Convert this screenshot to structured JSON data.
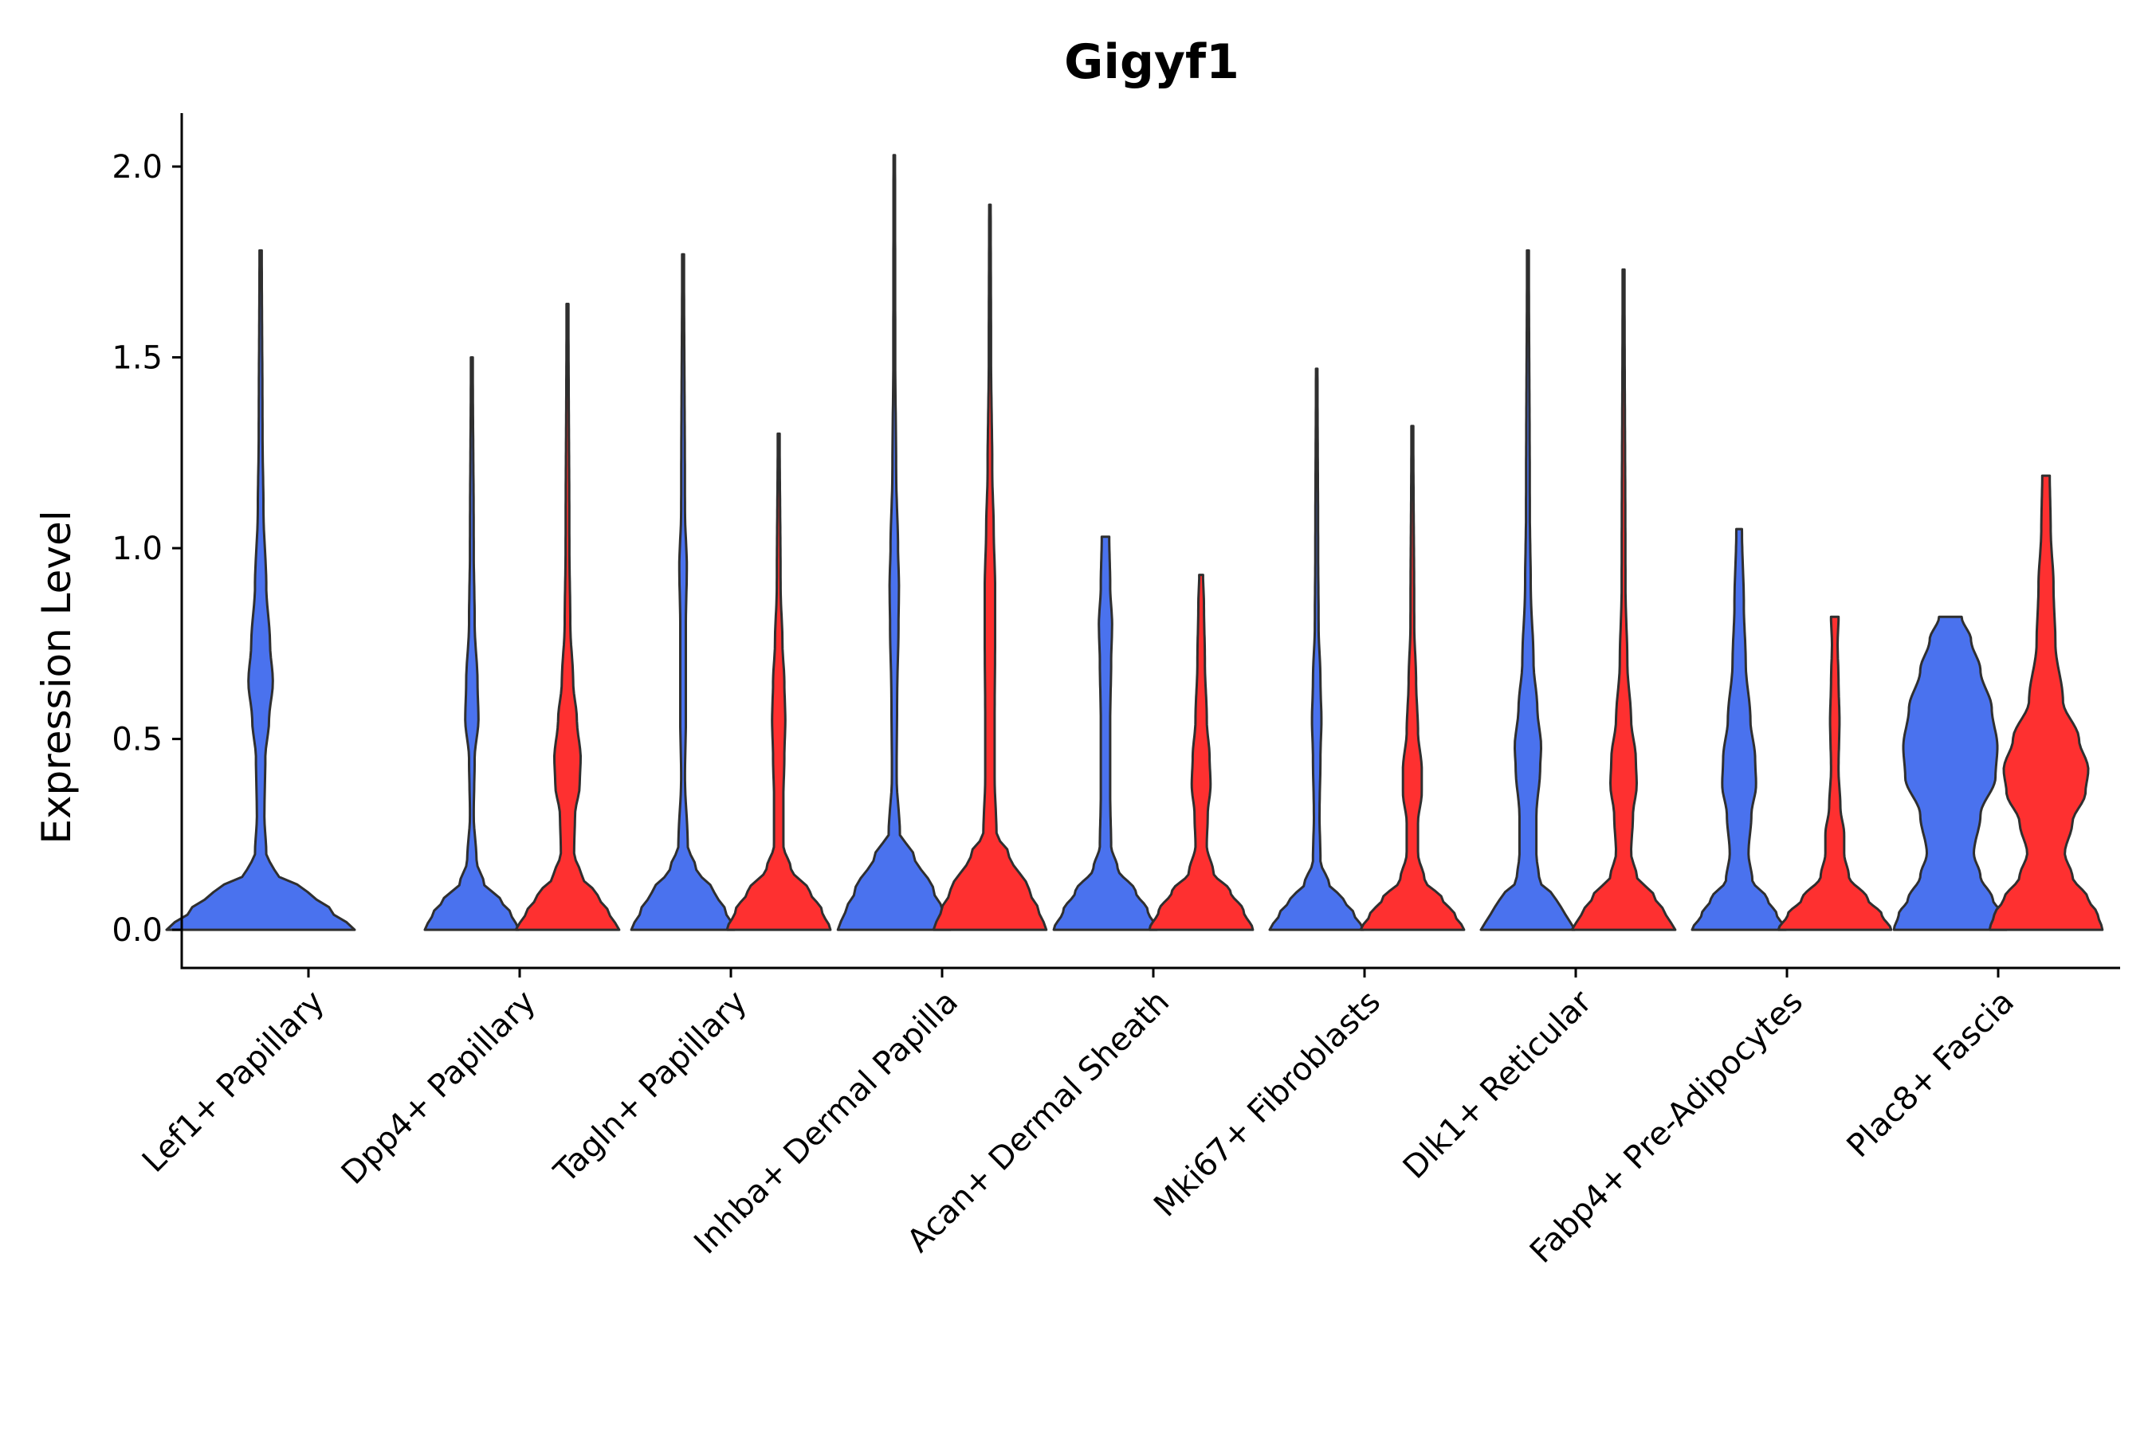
{
  "chart_data": {
    "type": "violin",
    "title": "Gigyf1",
    "xlabel": "",
    "ylabel": "Expression Level",
    "ylim": [
      -0.1,
      2.14
    ],
    "yticks": [
      "0.0",
      "0.5",
      "1.0",
      "1.5",
      "2.0"
    ],
    "ytick_values": [
      0,
      0.5,
      1.0,
      1.5,
      2.0
    ],
    "grid": false,
    "legend": "none",
    "colors": {
      "group1": "#4A72EE",
      "group2": "#FE3030",
      "outline": "#2f2f2f",
      "axis": "#000000"
    },
    "categories": [
      "Lef1+ Papillary",
      "Dpp4+ Papillary",
      "Tagln+ Papillary",
      "Inhba+ Dermal Papilla",
      "Acan+ Dermal Sheath",
      "Mki67+ Fibroblasts",
      "Dlk1+ Reticular",
      "Fabp4+ Pre-Adipocytes",
      "Plac8+ Fascia"
    ],
    "series": [
      {
        "name": "group1",
        "color": "#4A72EE",
        "violins": [
          {
            "category": "Lef1+ Papillary",
            "max": 1.78,
            "profile": [
              [
                0,
                1.0
              ],
              [
                0.05,
                0.75
              ],
              [
                0.1,
                0.5
              ],
              [
                0.15,
                0.15
              ],
              [
                0.2,
                0.06
              ],
              [
                0.3,
                0.04
              ],
              [
                0.45,
                0.05
              ],
              [
                0.55,
                0.09
              ],
              [
                0.65,
                0.13
              ],
              [
                0.75,
                0.1
              ],
              [
                0.9,
                0.06
              ],
              [
                1.1,
                0.03
              ],
              [
                1.3,
                0.02
              ],
              [
                1.78,
                0.012
              ]
            ]
          },
          {
            "category": "Dpp4+ Papillary",
            "max": 1.5,
            "profile": [
              [
                0,
                0.5
              ],
              [
                0.04,
                0.42
              ],
              [
                0.08,
                0.3
              ],
              [
                0.12,
                0.13
              ],
              [
                0.18,
                0.05
              ],
              [
                0.3,
                0.02
              ],
              [
                0.45,
                0.03
              ],
              [
                0.55,
                0.07
              ],
              [
                0.65,
                0.06
              ],
              [
                0.8,
                0.03
              ],
              [
                1.0,
                0.02
              ],
              [
                1.5,
                0.01
              ]
            ]
          },
          {
            "category": "Tagln+ Papillary",
            "max": 1.77,
            "profile": [
              [
                0,
                0.55
              ],
              [
                0.05,
                0.45
              ],
              [
                0.1,
                0.33
              ],
              [
                0.16,
                0.14
              ],
              [
                0.22,
                0.05
              ],
              [
                0.4,
                0.02
              ],
              [
                0.55,
                0.03
              ],
              [
                0.65,
                0.03
              ],
              [
                0.8,
                0.03
              ],
              [
                0.95,
                0.04
              ],
              [
                1.1,
                0.02
              ],
              [
                1.77,
                0.01
              ]
            ]
          },
          {
            "category": "Inhba+ Dermal Papilla",
            "max": 2.03,
            "profile": [
              [
                0,
                0.6
              ],
              [
                0.05,
                0.52
              ],
              [
                0.1,
                0.42
              ],
              [
                0.2,
                0.2
              ],
              [
                0.25,
                0.06
              ],
              [
                0.4,
                0.025
              ],
              [
                0.6,
                0.03
              ],
              [
                0.8,
                0.045
              ],
              [
                0.9,
                0.05
              ],
              [
                1.0,
                0.04
              ],
              [
                1.2,
                0.02
              ],
              [
                1.5,
                0.01
              ],
              [
                2.03,
                0.008
              ]
            ]
          },
          {
            "category": "Acan+ Dermal Sheath",
            "max": 1.03,
            "profile": [
              [
                0,
                0.55
              ],
              [
                0.05,
                0.45
              ],
              [
                0.1,
                0.32
              ],
              [
                0.16,
                0.13
              ],
              [
                0.22,
                0.06
              ],
              [
                0.35,
                0.05
              ],
              [
                0.55,
                0.05
              ],
              [
                0.7,
                0.06
              ],
              [
                0.8,
                0.07
              ],
              [
                0.9,
                0.05
              ],
              [
                1.03,
                0.04
              ]
            ]
          },
          {
            "category": "Mki67+ Fibroblasts",
            "max": 1.47,
            "profile": [
              [
                0,
                0.5
              ],
              [
                0.04,
                0.4
              ],
              [
                0.08,
                0.28
              ],
              [
                0.12,
                0.13
              ],
              [
                0.18,
                0.04
              ],
              [
                0.3,
                0.03
              ],
              [
                0.45,
                0.04
              ],
              [
                0.55,
                0.05
              ],
              [
                0.65,
                0.04
              ],
              [
                0.8,
                0.02
              ],
              [
                1.0,
                0.015
              ],
              [
                1.47,
                0.008
              ]
            ]
          },
          {
            "category": "Dlk1+ Reticular",
            "max": 1.78,
            "profile": [
              [
                0,
                0.5
              ],
              [
                0.04,
                0.4
              ],
              [
                0.08,
                0.3
              ],
              [
                0.13,
                0.12
              ],
              [
                0.2,
                0.09
              ],
              [
                0.3,
                0.09
              ],
              [
                0.42,
                0.13
              ],
              [
                0.48,
                0.14
              ],
              [
                0.58,
                0.1
              ],
              [
                0.7,
                0.06
              ],
              [
                0.9,
                0.03
              ],
              [
                1.1,
                0.02
              ],
              [
                1.78,
                0.01
              ]
            ]
          },
          {
            "category": "Fabp4+ Pre-Adipocytes",
            "max": 1.05,
            "profile": [
              [
                0,
                0.5
              ],
              [
                0.04,
                0.4
              ],
              [
                0.08,
                0.3
              ],
              [
                0.13,
                0.14
              ],
              [
                0.2,
                0.1
              ],
              [
                0.3,
                0.13
              ],
              [
                0.38,
                0.18
              ],
              [
                0.45,
                0.17
              ],
              [
                0.55,
                0.12
              ],
              [
                0.7,
                0.07
              ],
              [
                0.85,
                0.05
              ],
              [
                1.05,
                0.03
              ]
            ]
          },
          {
            "category": "Plac8+ Fascia",
            "max": 0.82,
            "profile": [
              [
                0,
                0.6
              ],
              [
                0.04,
                0.55
              ],
              [
                0.08,
                0.45
              ],
              [
                0.14,
                0.32
              ],
              [
                0.2,
                0.25
              ],
              [
                0.3,
                0.32
              ],
              [
                0.4,
                0.48
              ],
              [
                0.48,
                0.5
              ],
              [
                0.58,
                0.44
              ],
              [
                0.68,
                0.32
              ],
              [
                0.76,
                0.22
              ],
              [
                0.82,
                0.12
              ]
            ]
          }
        ]
      },
      {
        "name": "group2",
        "color": "#FE3030",
        "violins": [
          {
            "category": "Dpp4+ Papillary",
            "max": 1.64,
            "profile": [
              [
                0,
                0.55
              ],
              [
                0.04,
                0.45
              ],
              [
                0.09,
                0.32
              ],
              [
                0.14,
                0.15
              ],
              [
                0.2,
                0.07
              ],
              [
                0.3,
                0.08
              ],
              [
                0.38,
                0.13
              ],
              [
                0.45,
                0.14
              ],
              [
                0.55,
                0.1
              ],
              [
                0.65,
                0.06
              ],
              [
                0.8,
                0.03
              ],
              [
                1.0,
                0.02
              ],
              [
                1.64,
                0.01
              ]
            ]
          },
          {
            "category": "Tagln+ Papillary",
            "max": 1.3,
            "profile": [
              [
                0,
                0.55
              ],
              [
                0.05,
                0.46
              ],
              [
                0.1,
                0.33
              ],
              [
                0.16,
                0.13
              ],
              [
                0.22,
                0.05
              ],
              [
                0.35,
                0.05
              ],
              [
                0.45,
                0.06
              ],
              [
                0.55,
                0.07
              ],
              [
                0.65,
                0.06
              ],
              [
                0.75,
                0.04
              ],
              [
                0.9,
                0.02
              ],
              [
                1.3,
                0.01
              ]
            ]
          },
          {
            "category": "Inhba+ Dermal Papilla",
            "max": 1.9,
            "profile": [
              [
                0,
                0.6
              ],
              [
                0.05,
                0.52
              ],
              [
                0.1,
                0.42
              ],
              [
                0.2,
                0.2
              ],
              [
                0.25,
                0.07
              ],
              [
                0.4,
                0.05
              ],
              [
                0.55,
                0.05
              ],
              [
                0.75,
                0.055
              ],
              [
                0.9,
                0.055
              ],
              [
                1.05,
                0.04
              ],
              [
                1.2,
                0.025
              ],
              [
                1.5,
                0.012
              ],
              [
                1.9,
                0.008
              ]
            ]
          },
          {
            "category": "Acan+ Dermal Sheath",
            "max": 0.93,
            "profile": [
              [
                0,
                0.55
              ],
              [
                0.05,
                0.45
              ],
              [
                0.1,
                0.31
              ],
              [
                0.15,
                0.13
              ],
              [
                0.22,
                0.06
              ],
              [
                0.3,
                0.07
              ],
              [
                0.38,
                0.1
              ],
              [
                0.45,
                0.09
              ],
              [
                0.55,
                0.06
              ],
              [
                0.7,
                0.04
              ],
              [
                0.85,
                0.03
              ],
              [
                0.93,
                0.02
              ]
            ]
          },
          {
            "category": "Mki67+ Fibroblasts",
            "max": 1.32,
            "profile": [
              [
                0,
                0.55
              ],
              [
                0.04,
                0.45
              ],
              [
                0.08,
                0.32
              ],
              [
                0.13,
                0.13
              ],
              [
                0.2,
                0.06
              ],
              [
                0.28,
                0.06
              ],
              [
                0.36,
                0.1
              ],
              [
                0.42,
                0.1
              ],
              [
                0.52,
                0.06
              ],
              [
                0.65,
                0.04
              ],
              [
                0.8,
                0.02
              ],
              [
                1.32,
                0.01
              ]
            ]
          },
          {
            "category": "Dlk1+ Reticular",
            "max": 1.73,
            "profile": [
              [
                0,
                0.55
              ],
              [
                0.04,
                0.45
              ],
              [
                0.09,
                0.32
              ],
              [
                0.14,
                0.14
              ],
              [
                0.2,
                0.08
              ],
              [
                0.3,
                0.1
              ],
              [
                0.38,
                0.14
              ],
              [
                0.45,
                0.13
              ],
              [
                0.55,
                0.08
              ],
              [
                0.7,
                0.04
              ],
              [
                0.9,
                0.02
              ],
              [
                1.73,
                0.01
              ]
            ]
          },
          {
            "category": "Fabp4+ Pre-Adipocytes",
            "max": 0.82,
            "profile": [
              [
                0,
                0.6
              ],
              [
                0.04,
                0.5
              ],
              [
                0.08,
                0.35
              ],
              [
                0.14,
                0.15
              ],
              [
                0.2,
                0.1
              ],
              [
                0.25,
                0.1
              ],
              [
                0.32,
                0.06
              ],
              [
                0.42,
                0.04
              ],
              [
                0.55,
                0.05
              ],
              [
                0.65,
                0.04
              ],
              [
                0.75,
                0.03
              ],
              [
                0.82,
                0.04
              ]
            ]
          },
          {
            "category": "Plac8+ Fascia",
            "max": 1.19,
            "profile": [
              [
                0,
                0.6
              ],
              [
                0.04,
                0.55
              ],
              [
                0.08,
                0.45
              ],
              [
                0.14,
                0.28
              ],
              [
                0.2,
                0.2
              ],
              [
                0.28,
                0.28
              ],
              [
                0.36,
                0.42
              ],
              [
                0.42,
                0.45
              ],
              [
                0.5,
                0.35
              ],
              [
                0.6,
                0.18
              ],
              [
                0.75,
                0.1
              ],
              [
                0.9,
                0.08
              ],
              [
                1.05,
                0.05
              ],
              [
                1.19,
                0.04
              ]
            ]
          }
        ]
      }
    ]
  }
}
